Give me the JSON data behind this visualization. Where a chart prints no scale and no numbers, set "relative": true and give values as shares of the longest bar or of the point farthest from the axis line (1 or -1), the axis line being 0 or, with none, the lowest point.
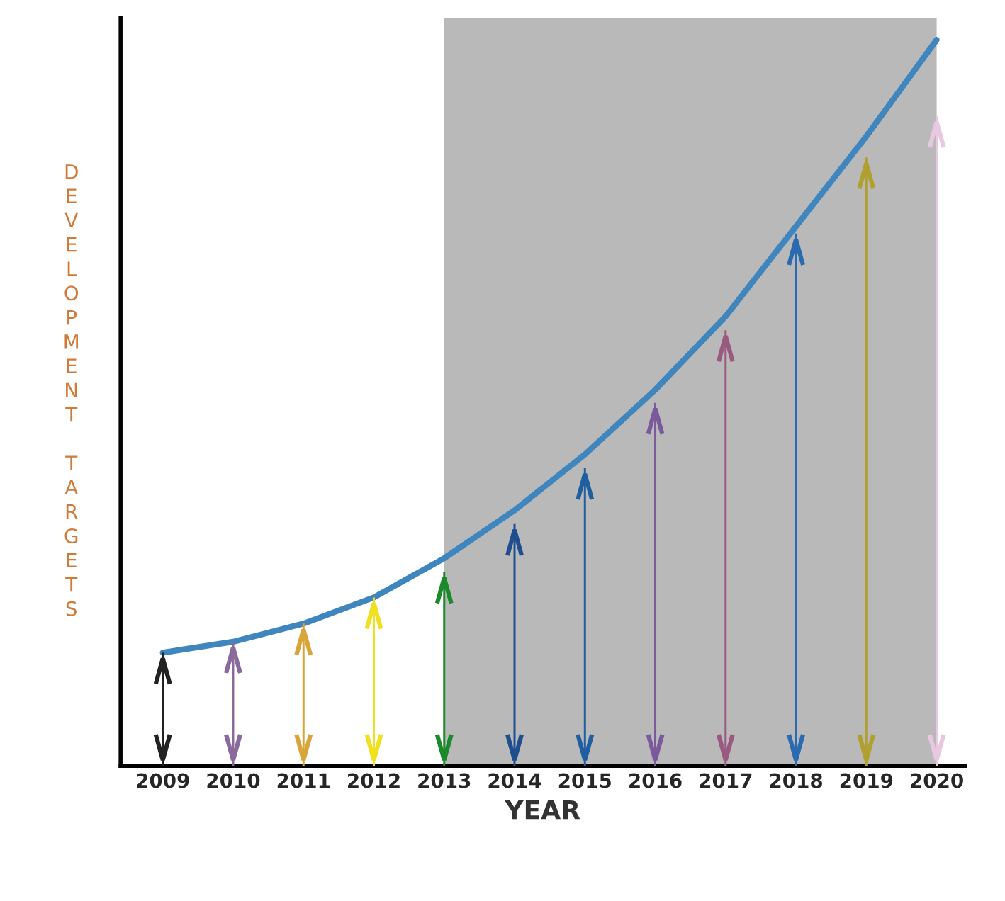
{
  "chart_data": {
    "type": "line",
    "relative": true,
    "xlabel": "YEAR",
    "ylabel": "DEVELOPMENT TARGETS",
    "tick_labels": "x",
    "grid": false,
    "legend": false,
    "categories": [
      "2009",
      "2010",
      "2011",
      "2012",
      "2013",
      "2014",
      "2015",
      "2016",
      "2017",
      "2018",
      "2019",
      "2020"
    ],
    "series": [
      {
        "color": "#3f86bf",
        "values": [
          0.156,
          0.171,
          0.196,
          0.232,
          0.286,
          0.352,
          0.429,
          0.518,
          0.619,
          0.743,
          0.867,
          1
        ]
      },
      {
        "type": "bar",
        "colors": [
          "#222222",
          "#8a6a9a",
          "#d9a53a",
          "#f0e020",
          "#1a8a2a",
          "#1f4e8f",
          "#1f5fa0",
          "#7a5a9a",
          "#9a5a80",
          "#2a6ab0",
          "#b0a030",
          "#e8c8e0"
        ],
        "values": [
          0.156,
          0.171,
          0.196,
          0.232,
          0.267,
          0.333,
          0.41,
          0.5,
          0.6,
          0.733,
          0.838,
          0.895
        ]
      }
    ],
    "bands": [
      {
        "axis": "x",
        "from": "2013",
        "to": "2020",
        "color": "#a8a8a8"
      }
    ]
  }
}
